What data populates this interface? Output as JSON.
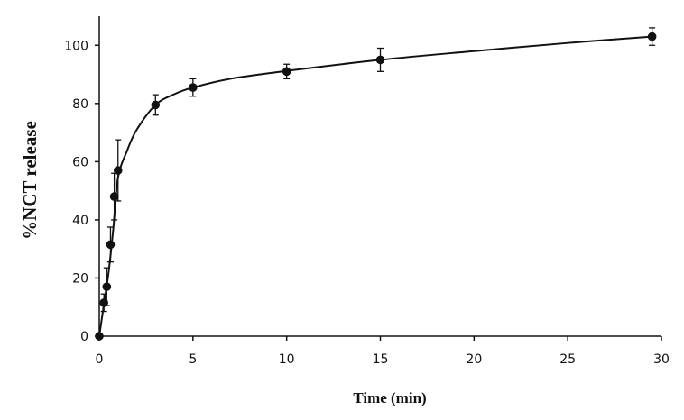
{
  "chart_data": {
    "type": "scatter",
    "title": "",
    "xlabel": "Time (min)",
    "ylabel": "%NCT release",
    "xlim": [
      0,
      30
    ],
    "ylim": [
      0,
      110
    ],
    "xticks": [
      0,
      5,
      10,
      15,
      20,
      25,
      30
    ],
    "yticks": [
      0,
      20,
      40,
      60,
      80,
      100
    ],
    "xtick_labels": [
      "0",
      "5",
      "10",
      "15",
      "20",
      "25",
      "30"
    ],
    "ytick_labels": [
      "0",
      "20",
      "40",
      "60",
      "80",
      "100"
    ],
    "grid": false,
    "legend": "none",
    "series": [
      {
        "marker": "filled-circle",
        "color": "#111111",
        "x": [
          0,
          0.25,
          0.4,
          0.6,
          0.8,
          1.0,
          3.0,
          5.0,
          10.0,
          15.0,
          29.5
        ],
        "y": [
          0,
          11.5,
          17.0,
          31.5,
          48.0,
          57.0,
          79.5,
          85.5,
          91.0,
          95.0,
          103.0
        ],
        "error": [
          0,
          3.0,
          6.5,
          6.0,
          8.0,
          10.5,
          3.5,
          3.0,
          2.5,
          4.0,
          3.0
        ]
      }
    ],
    "fit_curve": {
      "color": "#111111",
      "x": [
        0,
        0.25,
        0.5,
        0.75,
        1.0,
        1.5,
        2.0,
        3.0,
        4.0,
        5.0,
        7.0,
        10.0,
        15.0,
        20.0,
        25.0,
        29.5
      ],
      "y": [
        0,
        11.0,
        22.0,
        37.0,
        54.5,
        64.0,
        71.0,
        79.5,
        83.2,
        85.5,
        88.5,
        91.2,
        95.0,
        98.0,
        100.8,
        103.0
      ]
    }
  }
}
